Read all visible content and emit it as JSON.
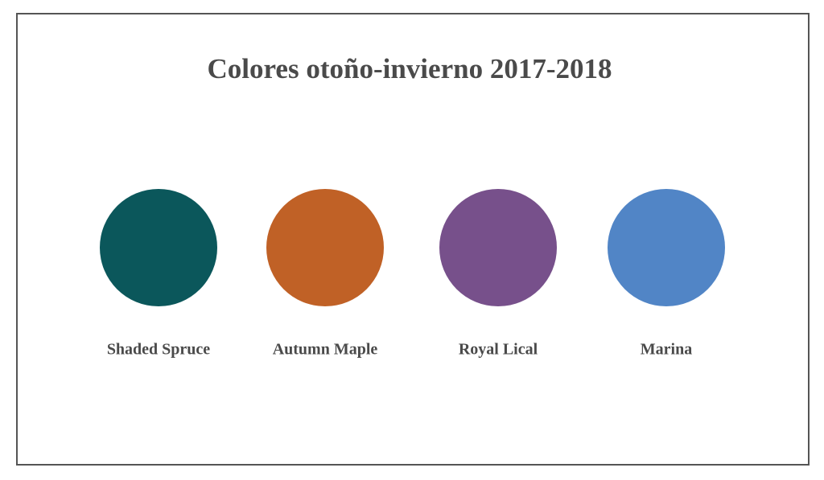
{
  "title": "Colores otoño-invierno 2017-2018",
  "swatches": [
    {
      "name": "Shaded Spruce",
      "color": "#0b575b"
    },
    {
      "name": "Autumn Maple",
      "color": "#c06126"
    },
    {
      "name": "Royal Lical",
      "color": "#77508b"
    },
    {
      "name": "Marina",
      "color": "#5185c6"
    }
  ]
}
